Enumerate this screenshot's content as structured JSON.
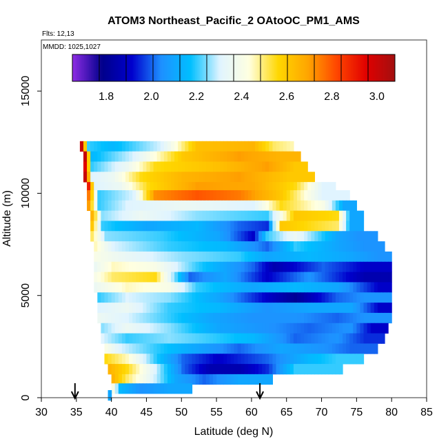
{
  "chart_data": {
    "type": "heatmap",
    "title": "ATOM3 Northeast_Pacific_2 OAtoOC_PM1_AMS",
    "flights_label": "Flts: 12,13",
    "dates_label": "MMDD: 1025,1027",
    "xlabel": "Latitude (deg N)",
    "ylabel": "Altitude (m)",
    "xlim": [
      30,
      85
    ],
    "ylim": [
      0,
      17500
    ],
    "x_ticks": [
      "30",
      "35",
      "40",
      "45",
      "50",
      "55",
      "60",
      "65",
      "70",
      "75",
      "80",
      "85"
    ],
    "y_ticks": [
      "0",
      "5000",
      "10000",
      "15000"
    ],
    "colorbar": {
      "range": [
        1.65,
        3.08
      ],
      "ticks": [
        "1.8",
        "2.0",
        "2.2",
        "2.4",
        "2.6",
        "2.8",
        "3.0"
      ],
      "colors": [
        "#8a2be2",
        "#00008b",
        "#0000cd",
        "#1e90ff",
        "#00bfff",
        "#e0f4ff",
        "#ffffe0",
        "#ffd700",
        "#ffa500",
        "#ff4500",
        "#e00000",
        "#a01010"
      ]
    },
    "arrows_latitude": [
      34.8,
      61.2
    ],
    "bands": [
      {
        "alt": 12300,
        "lat_start": 35.5,
        "lat_end": 66,
        "segments": [
          [
            35.5,
            3.0
          ],
          [
            36.5,
            2.2
          ],
          [
            40,
            2.15
          ],
          [
            47,
            2.3
          ],
          [
            52,
            2.62
          ],
          [
            60,
            2.65
          ],
          [
            63,
            2.5
          ],
          [
            66,
            2.45
          ]
        ]
      },
      {
        "alt": 11800,
        "lat_start": 36,
        "lat_end": 67,
        "segments": [
          [
            36,
            3.0
          ],
          [
            37,
            2.15
          ],
          [
            43,
            2.3
          ],
          [
            50,
            2.6
          ],
          [
            58,
            2.7
          ],
          [
            64,
            2.65
          ]
        ]
      },
      {
        "alt": 11300,
        "lat_start": 36,
        "lat_end": 68,
        "segments": [
          [
            36,
            2.95
          ],
          [
            37,
            2.2
          ],
          [
            42,
            2.35
          ],
          [
            46,
            2.55
          ],
          [
            55,
            2.62
          ],
          [
            62,
            2.7
          ],
          [
            66,
            2.6
          ]
        ]
      },
      {
        "alt": 10800,
        "lat_start": 36,
        "lat_end": 69,
        "segments": [
          [
            36,
            3.0
          ],
          [
            37,
            2.3
          ],
          [
            40,
            2.35
          ],
          [
            44,
            2.55
          ],
          [
            50,
            2.65
          ],
          [
            58,
            2.7
          ],
          [
            65,
            2.6
          ]
        ]
      },
      {
        "alt": 10300,
        "lat_start": 36.5,
        "lat_end": 72,
        "segments": [
          [
            36.5,
            2.9
          ],
          [
            37.5,
            2.3
          ],
          [
            41,
            2.35
          ],
          [
            45,
            2.55
          ],
          [
            52,
            2.7
          ],
          [
            60,
            2.68
          ],
          [
            66,
            2.55
          ],
          [
            70,
            2.3
          ]
        ]
      },
      {
        "alt": 9900,
        "lat_start": 36.5,
        "lat_end": 74,
        "segments": [
          [
            36.5,
            2.75
          ],
          [
            38,
            2.2
          ],
          [
            43,
            2.3
          ],
          [
            46,
            2.72
          ],
          [
            52,
            2.8
          ],
          [
            58,
            2.75
          ],
          [
            64,
            2.6
          ],
          [
            70,
            2.3
          ]
        ]
      },
      {
        "alt": 9400,
        "lat_start": 36.5,
        "lat_end": 75,
        "segments": [
          [
            36.5,
            2.7
          ],
          [
            38,
            2.2
          ],
          [
            42,
            2.3
          ],
          [
            50,
            2.35
          ],
          [
            60,
            2.3
          ],
          [
            64,
            2.55
          ],
          [
            70,
            2.4
          ],
          [
            73,
            2.1
          ]
        ]
      },
      {
        "alt": 8900,
        "lat_start": 37,
        "lat_end": 76,
        "segments": [
          [
            37,
            2.65
          ],
          [
            38.5,
            2.25
          ],
          [
            44,
            2.35
          ],
          [
            52,
            2.25
          ],
          [
            62,
            2.2
          ],
          [
            66,
            2.6
          ],
          [
            72,
            2.55
          ],
          [
            74,
            2.1
          ]
        ]
      },
      {
        "alt": 8400,
        "lat_start": 37,
        "lat_end": 76,
        "segments": [
          [
            37,
            2.6
          ],
          [
            38.5,
            2.2
          ],
          [
            45,
            2.1
          ],
          [
            52,
            2.15
          ],
          [
            58,
            2.0
          ],
          [
            62,
            1.95
          ],
          [
            64,
            2.6
          ],
          [
            72,
            2.5
          ],
          [
            74,
            2.1
          ]
        ]
      },
      {
        "alt": 7900,
        "lat_start": 37,
        "lat_end": 78,
        "segments": [
          [
            37,
            2.5
          ],
          [
            39,
            2.25
          ],
          [
            47,
            2.2
          ],
          [
            55,
            2.1
          ],
          [
            60,
            1.9
          ],
          [
            62,
            2.2
          ],
          [
            66,
            2.35
          ],
          [
            72,
            2.1
          ],
          [
            75,
            2.05
          ]
        ]
      },
      {
        "alt": 7400,
        "lat_start": 37.5,
        "lat_end": 79,
        "segments": [
          [
            37.5,
            2.45
          ],
          [
            40,
            2.3
          ],
          [
            48,
            2.2
          ],
          [
            56,
            2.15
          ],
          [
            62,
            2.0
          ],
          [
            66,
            2.2
          ],
          [
            72,
            2.1
          ],
          [
            76,
            2.05
          ]
        ]
      },
      {
        "alt": 6900,
        "lat_start": 37.5,
        "lat_end": 80,
        "segments": [
          [
            37.5,
            2.4
          ],
          [
            41,
            2.35
          ],
          [
            50,
            2.25
          ],
          [
            58,
            2.2
          ],
          [
            62,
            2.1
          ],
          [
            68,
            2.15
          ],
          [
            74,
            2.1
          ],
          [
            78,
            2.05
          ]
        ]
      },
      {
        "alt": 6400,
        "lat_start": 37.5,
        "lat_end": 80,
        "segments": [
          [
            37.5,
            2.35
          ],
          [
            40,
            2.45
          ],
          [
            46,
            2.4
          ],
          [
            52,
            2.2
          ],
          [
            60,
            2.0
          ],
          [
            63,
            1.85
          ],
          [
            70,
            2.0
          ],
          [
            76,
            1.9
          ]
        ]
      },
      {
        "alt": 5900,
        "lat_start": 37.5,
        "lat_end": 80,
        "segments": [
          [
            37.5,
            2.4
          ],
          [
            40,
            2.5
          ],
          [
            46,
            2.55
          ],
          [
            51,
            2.0
          ],
          [
            56,
            2.1
          ],
          [
            62,
            1.9
          ],
          [
            68,
            2.05
          ],
          [
            76,
            1.85
          ]
        ]
      },
      {
        "alt": 5400,
        "lat_start": 37.5,
        "lat_end": 80,
        "segments": [
          [
            37.5,
            2.35
          ],
          [
            42,
            2.45
          ],
          [
            48,
            2.4
          ],
          [
            52,
            2.2
          ],
          [
            60,
            2.1
          ],
          [
            66,
            2.15
          ],
          [
            72,
            2.1
          ],
          [
            78,
            1.9
          ]
        ]
      },
      {
        "alt": 4900,
        "lat_start": 38,
        "lat_end": 80,
        "segments": [
          [
            38,
            2.2
          ],
          [
            42,
            2.3
          ],
          [
            48,
            2.25
          ],
          [
            55,
            2.1
          ],
          [
            62,
            1.9
          ],
          [
            66,
            1.8
          ],
          [
            72,
            2.0
          ],
          [
            76,
            2.05
          ]
        ]
      },
      {
        "alt": 4400,
        "lat_start": 38,
        "lat_end": 80,
        "segments": [
          [
            38,
            2.3
          ],
          [
            42,
            2.35
          ],
          [
            48,
            2.2
          ],
          [
            55,
            2.15
          ],
          [
            62,
            2.05
          ],
          [
            68,
            2.1
          ],
          [
            74,
            2.1
          ],
          [
            78,
            1.9
          ]
        ]
      },
      {
        "alt": 3900,
        "lat_start": 38,
        "lat_end": 80,
        "segments": [
          [
            38,
            2.35
          ],
          [
            42,
            2.3
          ],
          [
            48,
            2.2
          ],
          [
            54,
            2.1
          ],
          [
            60,
            2.05
          ],
          [
            66,
            2.05
          ],
          [
            72,
            2.0
          ],
          [
            76,
            2.05
          ]
        ]
      },
      {
        "alt": 3400,
        "lat_start": 38.5,
        "lat_end": 79.5,
        "segments": [
          [
            38.5,
            2.25
          ],
          [
            42,
            2.35
          ],
          [
            48,
            2.25
          ],
          [
            55,
            2.1
          ],
          [
            62,
            2.05
          ],
          [
            68,
            2.0
          ],
          [
            74,
            2.05
          ],
          [
            77,
            1.9
          ]
        ]
      },
      {
        "alt": 2900,
        "lat_start": 38.5,
        "lat_end": 79,
        "segments": [
          [
            38.5,
            2.3
          ],
          [
            42,
            2.2
          ],
          [
            48,
            2.25
          ],
          [
            54,
            2.2
          ],
          [
            60,
            2.15
          ],
          [
            66,
            2.0
          ],
          [
            72,
            2.05
          ],
          [
            76,
            1.95
          ]
        ]
      },
      {
        "alt": 2400,
        "lat_start": 39,
        "lat_end": 78,
        "segments": [
          [
            39,
            2.4
          ],
          [
            41,
            2.3
          ],
          [
            46,
            2.2
          ],
          [
            52,
            2.1
          ],
          [
            58,
            2.0
          ],
          [
            64,
            2.1
          ],
          [
            70,
            2.05
          ],
          [
            74,
            2.0
          ]
        ]
      },
      {
        "alt": 1900,
        "lat_start": 39,
        "lat_end": 76,
        "segments": [
          [
            39,
            2.55
          ],
          [
            42,
            2.45
          ],
          [
            46,
            2.2
          ],
          [
            50,
            2.0
          ],
          [
            55,
            1.9
          ],
          [
            62,
            2.0
          ],
          [
            68,
            2.15
          ],
          [
            72,
            2.2
          ]
        ]
      },
      {
        "alt": 1400,
        "lat_start": 39.5,
        "lat_end": 73,
        "segments": [
          [
            39.5,
            2.65
          ],
          [
            42,
            2.55
          ],
          [
            46,
            2.3
          ],
          [
            50,
            2.0
          ],
          [
            54,
            1.85
          ],
          [
            58,
            1.85
          ],
          [
            62,
            1.95
          ],
          [
            66,
            2.2
          ]
        ]
      },
      {
        "alt": 900,
        "lat_start": 40,
        "lat_end": 63,
        "segments": [
          [
            40,
            2.65
          ],
          [
            42,
            2.5
          ],
          [
            45,
            2.35
          ],
          [
            49,
            2.1
          ],
          [
            53,
            2.0
          ],
          [
            58,
            2.1
          ]
        ]
      },
      {
        "alt": 450,
        "lat_start": 40,
        "lat_end": 51.5,
        "segments": [
          [
            40,
            2.4
          ],
          [
            41,
            2.15
          ],
          [
            44,
            2.05
          ],
          [
            48,
            2.1
          ]
        ]
      },
      {
        "alt": 120,
        "lat_start": 39.5,
        "lat_end": 40,
        "segments": [
          [
            39.5,
            2.1
          ]
        ]
      }
    ]
  }
}
